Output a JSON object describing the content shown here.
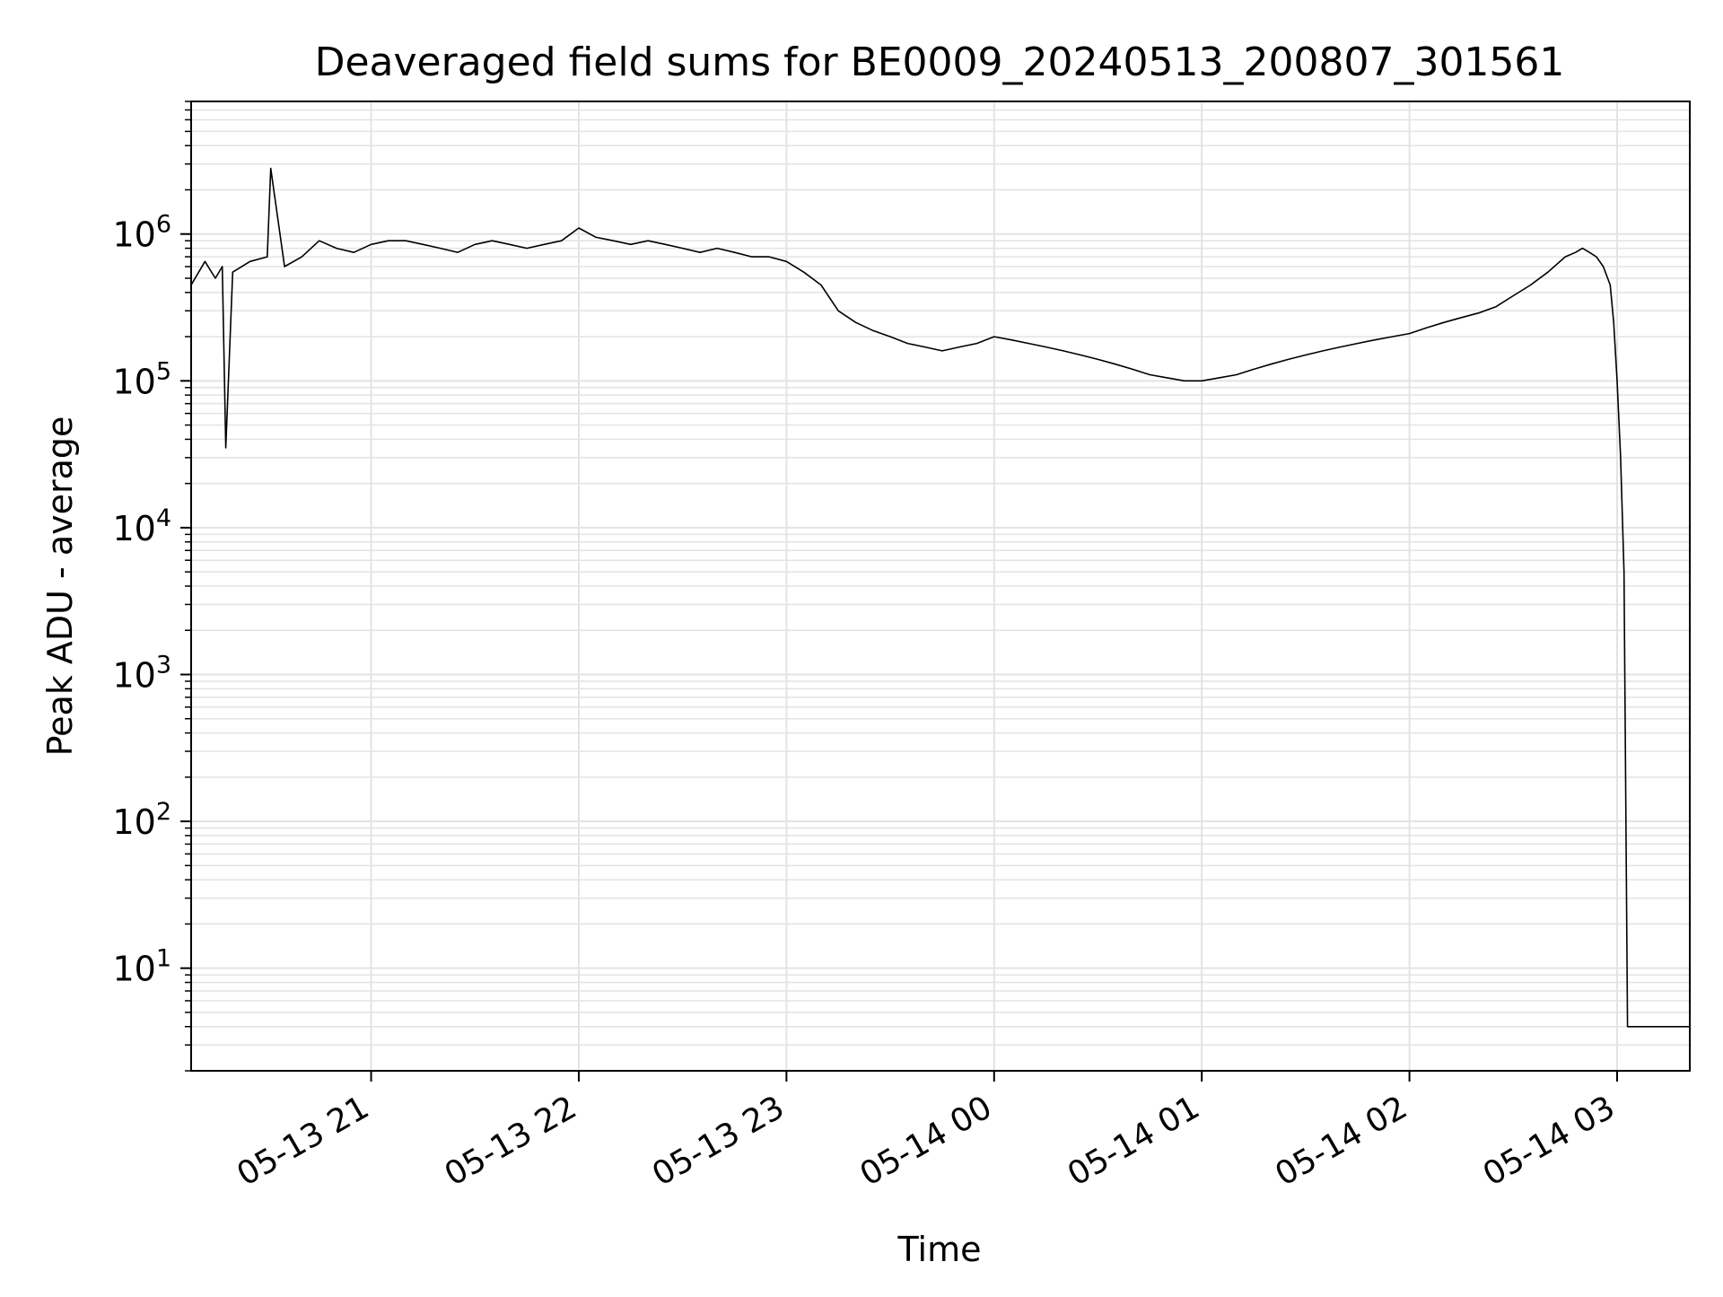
{
  "chart_data": {
    "type": "line",
    "title": "Deaveraged field sums for BE0009_20240513_200807_301561",
    "xlabel": "Time",
    "ylabel": "Peak ADU - average",
    "y_scale": "log",
    "ylim": [
      2,
      8000000
    ],
    "xlim": [
      "2024-05-13 20:08",
      "2024-05-14 03:21"
    ],
    "x_tick_labels": [
      "05-13 21",
      "05-13 22",
      "05-13 23",
      "05-14 00",
      "05-14 01",
      "05-14 02",
      "05-14 03"
    ],
    "x_tick_values": [
      "2024-05-13 21:00",
      "2024-05-13 22:00",
      "2024-05-13 23:00",
      "2024-05-14 00:00",
      "2024-05-14 01:00",
      "2024-05-14 02:00",
      "2024-05-14 03:00"
    ],
    "y_tick_labels": [
      {
        "base": "10",
        "exp": "1"
      },
      {
        "base": "10",
        "exp": "2"
      },
      {
        "base": "10",
        "exp": "3"
      },
      {
        "base": "10",
        "exp": "4"
      },
      {
        "base": "10",
        "exp": "5"
      },
      {
        "base": "10",
        "exp": "6"
      }
    ],
    "y_tick_values": [
      10,
      100,
      1000,
      10000,
      100000,
      1000000
    ],
    "grid": "major and minor",
    "line_color": "#000000",
    "grid_color": "#e3e3e3",
    "series": [
      {
        "x": [
          "2024-05-13 20:08",
          "2024-05-13 20:12",
          "2024-05-13 20:15",
          "2024-05-13 20:17",
          "2024-05-13 20:18",
          "2024-05-13 20:20",
          "2024-05-13 20:25",
          "2024-05-13 20:30",
          "2024-05-13 20:31",
          "2024-05-13 20:35",
          "2024-05-13 20:40",
          "2024-05-13 20:45",
          "2024-05-13 20:50",
          "2024-05-13 20:55",
          "2024-05-13 21:00",
          "2024-05-13 21:05",
          "2024-05-13 21:10",
          "2024-05-13 21:15",
          "2024-05-13 21:20",
          "2024-05-13 21:25",
          "2024-05-13 21:30",
          "2024-05-13 21:35",
          "2024-05-13 21:40",
          "2024-05-13 21:45",
          "2024-05-13 21:50",
          "2024-05-13 21:55",
          "2024-05-13 22:00",
          "2024-05-13 22:05",
          "2024-05-13 22:10",
          "2024-05-13 22:15",
          "2024-05-13 22:20",
          "2024-05-13 22:25",
          "2024-05-13 22:30",
          "2024-05-13 22:35",
          "2024-05-13 22:40",
          "2024-05-13 22:45",
          "2024-05-13 22:50",
          "2024-05-13 22:55",
          "2024-05-13 23:00",
          "2024-05-13 23:05",
          "2024-05-13 23:10",
          "2024-05-13 23:15",
          "2024-05-13 23:20",
          "2024-05-13 23:25",
          "2024-05-13 23:30",
          "2024-05-13 23:35",
          "2024-05-13 23:40",
          "2024-05-13 23:45",
          "2024-05-13 23:50",
          "2024-05-13 23:55",
          "2024-05-14 00:00",
          "2024-05-14 00:05",
          "2024-05-14 00:10",
          "2024-05-14 00:15",
          "2024-05-14 00:20",
          "2024-05-14 00:25",
          "2024-05-14 00:30",
          "2024-05-14 00:35",
          "2024-05-14 00:40",
          "2024-05-14 00:45",
          "2024-05-14 00:50",
          "2024-05-14 00:55",
          "2024-05-14 01:00",
          "2024-05-14 01:05",
          "2024-05-14 01:10",
          "2024-05-14 01:15",
          "2024-05-14 01:20",
          "2024-05-14 01:25",
          "2024-05-14 01:30",
          "2024-05-14 01:35",
          "2024-05-14 01:40",
          "2024-05-14 01:45",
          "2024-05-14 01:50",
          "2024-05-14 01:55",
          "2024-05-14 02:00",
          "2024-05-14 02:05",
          "2024-05-14 02:10",
          "2024-05-14 02:15",
          "2024-05-14 02:20",
          "2024-05-14 02:25",
          "2024-05-14 02:30",
          "2024-05-14 02:35",
          "2024-05-14 02:40",
          "2024-05-14 02:45",
          "2024-05-14 02:48",
          "2024-05-14 02:50",
          "2024-05-14 02:52",
          "2024-05-14 02:54",
          "2024-05-14 02:56",
          "2024-05-14 02:58",
          "2024-05-14 02:59",
          "2024-05-14 03:00",
          "2024-05-14 03:01",
          "2024-05-14 03:02",
          "2024-05-14 03:03",
          "2024-05-14 03:05",
          "2024-05-14 03:10",
          "2024-05-14 03:15",
          "2024-05-14 03:21"
        ],
        "y": [
          450000,
          650000,
          500000,
          600000,
          35000,
          550000,
          650000,
          700000,
          2800000,
          600000,
          700000,
          900000,
          800000,
          750000,
          850000,
          900000,
          900000,
          850000,
          800000,
          750000,
          850000,
          900000,
          850000,
          800000,
          850000,
          900000,
          1100000,
          950000,
          900000,
          850000,
          900000,
          850000,
          800000,
          750000,
          800000,
          750000,
          700000,
          700000,
          650000,
          550000,
          450000,
          300000,
          250000,
          220000,
          200000,
          180000,
          170000,
          160000,
          170000,
          180000,
          200000,
          190000,
          180000,
          170000,
          160000,
          150000,
          140000,
          130000,
          120000,
          110000,
          105000,
          100000,
          100000,
          105000,
          110000,
          120000,
          130000,
          140000,
          150000,
          160000,
          170000,
          180000,
          190000,
          200000,
          210000,
          230000,
          250000,
          270000,
          290000,
          320000,
          380000,
          450000,
          550000,
          700000,
          750000,
          800000,
          750000,
          700000,
          600000,
          450000,
          250000,
          100000,
          30000,
          5000,
          4,
          4,
          4,
          4,
          4
        ]
      }
    ]
  }
}
